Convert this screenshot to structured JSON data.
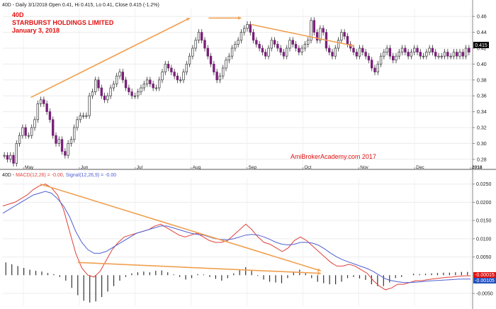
{
  "header": {
    "price_info": "40D - Daily 3/1/2018 Open 0.41, Hi 0.415, Lo 0.41, Close 0.415 (-1.2%)",
    "ticker": "40D",
    "company": "STARBURST HOLDINGS LIMITED",
    "date": "January 3, 2018",
    "watermark": "AmiBrokerAcademy.com  2017",
    "macd_info_prefix": "40D - ",
    "macd_label": "MACD(12,26) = -0.00,",
    "signal_label": "Signal(12,26,9) = -0.00"
  },
  "colors": {
    "up_candle": "#ffffff",
    "down_candle": "#7a1f7a",
    "trendline": "#f0a050",
    "macd": "#e0403a",
    "signal": "#5060d0",
    "hist": "#333333",
    "title_red": "#e01010",
    "value_tag": "#000000",
    "macd_tag": "#e01010",
    "signal_tag": "#2050c0"
  },
  "chart_data": [
    {
      "type": "candlestick",
      "x_ticks": [
        "May",
        "Jun",
        "Jul",
        "Aug",
        "Sep",
        "Oct",
        "Nov",
        "Dec",
        "2018"
      ],
      "y_ticks": [
        "0.28",
        "0.30",
        "0.32",
        "0.34",
        "0.36",
        "0.38",
        "0.40",
        "0.42",
        "0.44",
        "0.46"
      ],
      "ylim": [
        0.27,
        0.47
      ],
      "last_value": "0.415",
      "closes": [
        0.285,
        0.28,
        0.285,
        0.275,
        0.3,
        0.31,
        0.32,
        0.31,
        0.31,
        0.32,
        0.33,
        0.35,
        0.355,
        0.35,
        0.34,
        0.33,
        0.31,
        0.3,
        0.305,
        0.29,
        0.285,
        0.3,
        0.305,
        0.32,
        0.33,
        0.335,
        0.335,
        0.335,
        0.36,
        0.365,
        0.38,
        0.37,
        0.36,
        0.355,
        0.36,
        0.37,
        0.375,
        0.385,
        0.39,
        0.38,
        0.37,
        0.365,
        0.36,
        0.36,
        0.365,
        0.37,
        0.375,
        0.38,
        0.375,
        0.37,
        0.37,
        0.38,
        0.39,
        0.4,
        0.395,
        0.39,
        0.385,
        0.38,
        0.38,
        0.39,
        0.4,
        0.41,
        0.42,
        0.43,
        0.44,
        0.43,
        0.42,
        0.41,
        0.4,
        0.39,
        0.38,
        0.385,
        0.395,
        0.405,
        0.41,
        0.42,
        0.425,
        0.43,
        0.44,
        0.445,
        0.45,
        0.44,
        0.43,
        0.425,
        0.42,
        0.415,
        0.41,
        0.42,
        0.43,
        0.425,
        0.42,
        0.415,
        0.41,
        0.42,
        0.43,
        0.425,
        0.42,
        0.415,
        0.42,
        0.425,
        0.43,
        0.455,
        0.44,
        0.43,
        0.445,
        0.44,
        0.42,
        0.415,
        0.41,
        0.42,
        0.43,
        0.44,
        0.435,
        0.425,
        0.42,
        0.415,
        0.41,
        0.42,
        0.415,
        0.41,
        0.405,
        0.395,
        0.39,
        0.4,
        0.41,
        0.415,
        0.42,
        0.41,
        0.405,
        0.41,
        0.415,
        0.42,
        0.415,
        0.41,
        0.415,
        0.42,
        0.415,
        0.41,
        0.41,
        0.415,
        0.42,
        0.415,
        0.41,
        0.41,
        0.41,
        0.415,
        0.41,
        0.41,
        0.415,
        0.41,
        0.415,
        0.41,
        0.42,
        0.415
      ],
      "trendlines": [
        {
          "x": [
            0.06,
            0.4
          ],
          "y": [
            0.358,
            0.458
          ]
        },
        {
          "x": [
            0.44,
            0.51
          ],
          "y": [
            0.458,
            0.458
          ]
        },
        {
          "x": [
            0.53,
            0.75
          ],
          "y": [
            0.45,
            0.423
          ]
        }
      ]
    },
    {
      "type": "line",
      "y_ticks": [
        "0.0250",
        "0.0200",
        "0.0150",
        "0.0100",
        "0.0050",
        "-0.0050"
      ],
      "ylim": [
        -0.0085,
        0.0265
      ],
      "macd_value": "-0.00015",
      "signal_value": "-0.00105",
      "series": [
        {
          "name": "MACD(12,26)",
          "values": [
            0.019,
            0.0195,
            0.02,
            0.021,
            0.022,
            0.0235,
            0.0245,
            0.025,
            0.024,
            0.022,
            0.018,
            0.012,
            0.006,
            0.002,
            0.0,
            -0.0005,
            0.001,
            0.004,
            0.007,
            0.009,
            0.0105,
            0.011,
            0.0115,
            0.012,
            0.0125,
            0.0135,
            0.014,
            0.013,
            0.012,
            0.011,
            0.0105,
            0.011,
            0.0115,
            0.0105,
            0.0095,
            0.009,
            0.009,
            0.0095,
            0.011,
            0.0125,
            0.014,
            0.0125,
            0.0105,
            0.009,
            0.0085,
            0.0075,
            0.0065,
            0.0075,
            0.0095,
            0.0105,
            0.0095,
            0.008,
            0.0065,
            0.005,
            0.0035,
            0.0025,
            0.0025,
            0.003,
            0.0025,
            0.0015,
            0.0005,
            -0.0015,
            -0.003,
            -0.004,
            -0.0035,
            -0.0025,
            -0.0025,
            -0.002,
            -0.0015,
            -0.0015,
            -0.0012,
            -0.001,
            -0.0008,
            -0.0006,
            -0.0005,
            -0.0003,
            -0.0002,
            -0.00015
          ]
        },
        {
          "name": "Signal(12,26,9)",
          "values": [
            0.017,
            0.018,
            0.019,
            0.02,
            0.021,
            0.022,
            0.0225,
            0.023,
            0.0225,
            0.021,
            0.019,
            0.016,
            0.012,
            0.009,
            0.007,
            0.006,
            0.006,
            0.0065,
            0.0075,
            0.0085,
            0.0095,
            0.0105,
            0.0115,
            0.012,
            0.0125,
            0.013,
            0.0135,
            0.0135,
            0.013,
            0.0125,
            0.012,
            0.0115,
            0.0112,
            0.011,
            0.0105,
            0.01,
            0.0098,
            0.0097,
            0.01,
            0.0105,
            0.011,
            0.0112,
            0.011,
            0.0105,
            0.0098,
            0.009,
            0.0085,
            0.0083,
            0.0085,
            0.009,
            0.009,
            0.0088,
            0.0082,
            0.0072,
            0.006,
            0.005,
            0.0042,
            0.0036,
            0.003,
            0.0024,
            0.0018,
            0.001,
            0.0,
            -0.001,
            -0.0015,
            -0.0018,
            -0.002,
            -0.002,
            -0.0019,
            -0.0018,
            -0.0016,
            -0.0015,
            -0.0014,
            -0.0013,
            -0.0012,
            -0.0011,
            -0.00105,
            -0.00105
          ]
        }
      ],
      "histogram": [
        0.0035,
        0.003,
        0.0025,
        0.002,
        0.0015,
        0.0012,
        0.001,
        0.0006,
        0.0003,
        -0.0005,
        -0.0015,
        -0.0035,
        -0.0055,
        -0.007,
        -0.0075,
        -0.0072,
        -0.006,
        -0.0045,
        -0.003,
        -0.0015,
        -0.0005,
        0.0005,
        0.0008,
        0.001,
        0.0008,
        0.0012,
        0.0013,
        0.0008,
        0.0002,
        -0.0005,
        -0.0012,
        -0.0008,
        0.0003,
        0.0002,
        -0.0005,
        -0.001,
        -0.0015,
        -0.0008,
        0.0005,
        0.0015,
        0.0022,
        0.0012,
        -0.0002,
        -0.0012,
        -0.0018,
        -0.002,
        -0.0022,
        -0.0008,
        0.0008,
        0.0015,
        0.0005,
        -0.0008,
        -0.0018,
        -0.0022,
        -0.0025,
        -0.0025,
        -0.0018,
        -0.0008,
        -0.0005,
        -0.0009,
        -0.0013,
        -0.0025,
        -0.003,
        -0.003,
        -0.002,
        -0.0008,
        -0.0005,
        0.0,
        0.0004,
        0.0003,
        0.0004,
        0.0005,
        0.0006,
        0.0007,
        0.0007,
        0.0008,
        0.0009,
        0.0009
      ],
      "trendlines": [
        {
          "x": [
            0.08,
            0.68
          ],
          "y": [
            0.025,
            0.0012
          ]
        },
        {
          "x": [
            0.16,
            0.68
          ],
          "y": [
            0.0035,
            0.0005
          ]
        }
      ]
    }
  ]
}
